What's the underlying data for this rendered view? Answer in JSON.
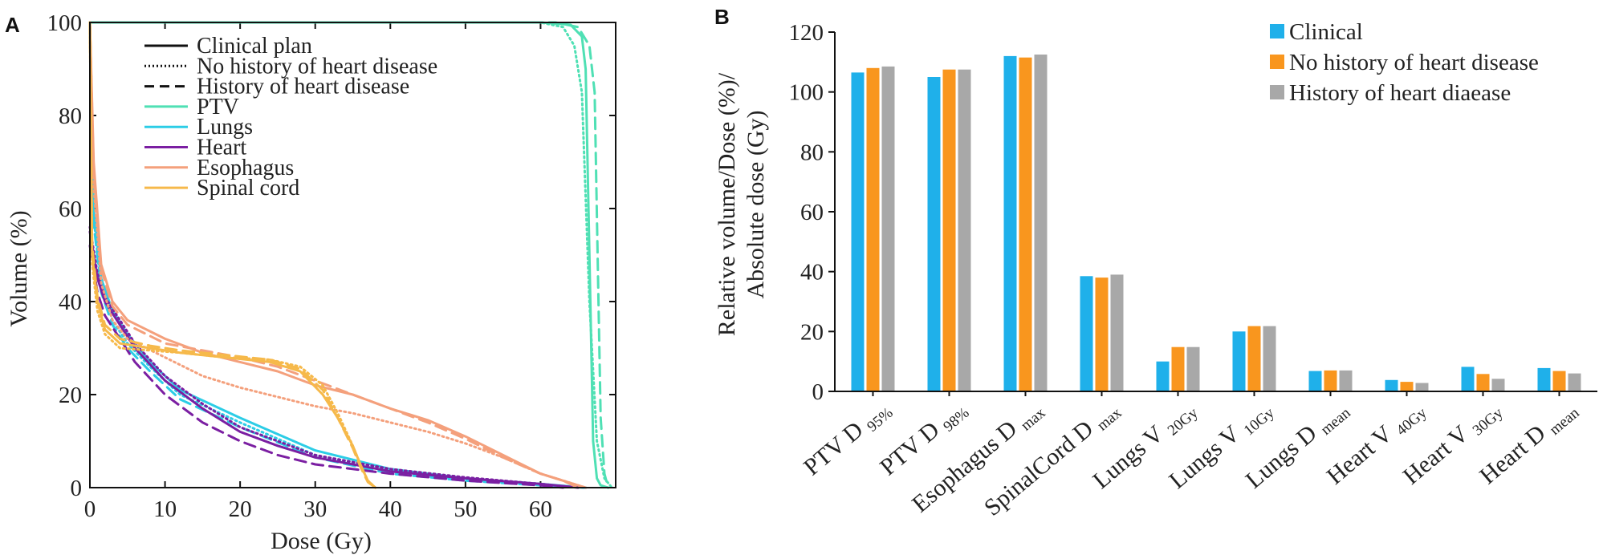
{
  "chart_data": [
    {
      "panel": "A",
      "type": "line",
      "xlabel": "Dose (Gy)",
      "ylabel": "Volume (%)",
      "xlim": [
        0,
        70
      ],
      "ylim": [
        0,
        100
      ],
      "xticks": [
        0,
        10,
        20,
        30,
        40,
        50,
        60
      ],
      "yticks": [
        0,
        20,
        40,
        60,
        80,
        100
      ],
      "legend_position": "top-left",
      "legend": {
        "styles": [
          {
            "name": "Clinical plan",
            "dash": "solid"
          },
          {
            "name": "No history of heart disease",
            "dash": "dotted"
          },
          {
            "name": "History of heart disease",
            "dash": "dashed"
          }
        ],
        "structures": [
          {
            "name": "PTV",
            "color": "#4fe0b4"
          },
          {
            "name": "Lungs",
            "color": "#2ccde6"
          },
          {
            "name": "Heart",
            "color": "#7b1fa2"
          },
          {
            "name": "Esophagus",
            "color": "#f4a07c"
          },
          {
            "name": "Spinal cord",
            "color": "#f6b94a"
          }
        ]
      },
      "series": [
        {
          "structure": "PTV",
          "plan": "Clinical plan",
          "points": [
            [
              0,
              100
            ],
            [
              60,
              100
            ],
            [
              64,
              99.5
            ],
            [
              65.5,
              97
            ],
            [
              66,
              90
            ],
            [
              66.5,
              50
            ],
            [
              67,
              10
            ],
            [
              67.5,
              2
            ],
            [
              68,
              0.5
            ],
            [
              69,
              0
            ]
          ]
        },
        {
          "structure": "PTV",
          "plan": "No history of heart disease",
          "points": [
            [
              0,
              100
            ],
            [
              60,
              100
            ],
            [
              63,
              99
            ],
            [
              64.5,
              95
            ],
            [
              65.5,
              85
            ],
            [
              66.5,
              40
            ],
            [
              67.5,
              10
            ],
            [
              68.5,
              2
            ],
            [
              69.5,
              0
            ]
          ]
        },
        {
          "structure": "PTV",
          "plan": "History of heart disease",
          "points": [
            [
              0,
              100
            ],
            [
              62,
              100
            ],
            [
              65,
              99
            ],
            [
              66.5,
              95
            ],
            [
              67.2,
              85
            ],
            [
              67.6,
              50
            ],
            [
              68,
              15
            ],
            [
              68.5,
              3
            ],
            [
              69,
              0
            ]
          ]
        },
        {
          "structure": "Lungs",
          "plan": "Clinical plan",
          "points": [
            [
              0,
              100
            ],
            [
              0.5,
              60
            ],
            [
              1.5,
              45
            ],
            [
              3,
              38
            ],
            [
              5,
              33
            ],
            [
              8,
              27
            ],
            [
              12,
              21
            ],
            [
              20,
              15
            ],
            [
              30,
              8
            ],
            [
              40,
              4
            ],
            [
              50,
              2
            ],
            [
              60,
              0.8
            ],
            [
              66,
              0
            ]
          ]
        },
        {
          "structure": "Lungs",
          "plan": "No history of heart disease",
          "points": [
            [
              0,
              100
            ],
            [
              0.5,
              58
            ],
            [
              1.5,
              43
            ],
            [
              3,
              36
            ],
            [
              5,
              31
            ],
            [
              8,
              26
            ],
            [
              12,
              20
            ],
            [
              20,
              14
            ],
            [
              30,
              7
            ],
            [
              40,
              3.5
            ],
            [
              50,
              1.8
            ],
            [
              60,
              0.6
            ],
            [
              66,
              0
            ]
          ]
        },
        {
          "structure": "Lungs",
          "plan": "History of heart disease",
          "points": [
            [
              0,
              100
            ],
            [
              0.5,
              57
            ],
            [
              1.5,
              42
            ],
            [
              3,
              35
            ],
            [
              5,
              30
            ],
            [
              8,
              25
            ],
            [
              12,
              19
            ],
            [
              20,
              13
            ],
            [
              30,
              6.5
            ],
            [
              40,
              3
            ],
            [
              50,
              1.5
            ],
            [
              60,
              0.5
            ],
            [
              66,
              0
            ]
          ]
        },
        {
          "structure": "Heart",
          "plan": "Clinical plan",
          "points": [
            [
              0,
              55
            ],
            [
              1,
              45
            ],
            [
              2,
              40
            ],
            [
              4,
              35
            ],
            [
              6,
              30
            ],
            [
              10,
              23
            ],
            [
              15,
              17
            ],
            [
              20,
              12
            ],
            [
              25,
              9
            ],
            [
              30,
              6.5
            ],
            [
              40,
              3.5
            ],
            [
              50,
              2
            ],
            [
              60,
              0.8
            ],
            [
              65,
              0
            ]
          ]
        },
        {
          "structure": "Heart",
          "plan": "No history of heart disease",
          "points": [
            [
              0,
              56
            ],
            [
              1,
              46
            ],
            [
              2,
              41
            ],
            [
              4,
              36
            ],
            [
              6,
              31
            ],
            [
              10,
              24
            ],
            [
              15,
              18
            ],
            [
              20,
              13
            ],
            [
              25,
              10
            ],
            [
              30,
              7
            ],
            [
              40,
              4
            ],
            [
              50,
              2.2
            ],
            [
              60,
              0.8
            ],
            [
              65,
              0
            ]
          ]
        },
        {
          "structure": "Heart",
          "plan": "History of heart disease",
          "points": [
            [
              0,
              52
            ],
            [
              1,
              42
            ],
            [
              2,
              37
            ],
            [
              4,
              32
            ],
            [
              6,
              27
            ],
            [
              10,
              20
            ],
            [
              15,
              14
            ],
            [
              20,
              10
            ],
            [
              25,
              7
            ],
            [
              30,
              5
            ],
            [
              40,
              3
            ],
            [
              50,
              1.5
            ],
            [
              60,
              0.5
            ],
            [
              63,
              0
            ]
          ]
        },
        {
          "structure": "Esophagus",
          "plan": "Clinical plan",
          "points": [
            [
              0,
              100
            ],
            [
              0.5,
              70
            ],
            [
              1.5,
              48
            ],
            [
              3,
              40
            ],
            [
              5,
              36
            ],
            [
              10,
              32
            ],
            [
              15,
              29
            ],
            [
              20,
              27
            ],
            [
              25,
              25
            ],
            [
              30,
              22
            ],
            [
              35,
              20
            ],
            [
              40,
              17
            ],
            [
              45,
              14.5
            ],
            [
              50,
              11
            ],
            [
              55,
              7
            ],
            [
              60,
              3
            ],
            [
              63,
              1.5
            ],
            [
              66,
              0
            ]
          ]
        },
        {
          "structure": "Esophagus",
          "plan": "No history of heart disease",
          "points": [
            [
              0,
              100
            ],
            [
              0.5,
              65
            ],
            [
              1.5,
              44
            ],
            [
              3,
              36
            ],
            [
              5,
              32
            ],
            [
              10,
              28
            ],
            [
              15,
              24
            ],
            [
              20,
              21.5
            ],
            [
              25,
              19.5
            ],
            [
              30,
              17.5
            ],
            [
              35,
              16
            ],
            [
              40,
              14
            ],
            [
              45,
              12
            ],
            [
              50,
              9.5
            ],
            [
              55,
              6.5
            ],
            [
              60,
              3
            ],
            [
              63,
              1.5
            ],
            [
              66,
              0
            ]
          ]
        },
        {
          "structure": "Esophagus",
          "plan": "History of heart disease",
          "points": [
            [
              0,
              100
            ],
            [
              0.5,
              68
            ],
            [
              1.5,
              47
            ],
            [
              3,
              39
            ],
            [
              5,
              35
            ],
            [
              10,
              31
            ],
            [
              15,
              29.5
            ],
            [
              20,
              28
            ],
            [
              25,
              26
            ],
            [
              30,
              23
            ],
            [
              35,
              20
            ],
            [
              40,
              17
            ],
            [
              45,
              14
            ],
            [
              50,
              10.5
            ],
            [
              55,
              6.5
            ],
            [
              60,
              3
            ],
            [
              63,
              1.5
            ],
            [
              65,
              0
            ]
          ]
        },
        {
          "structure": "Spinal cord",
          "plan": "Clinical plan",
          "points": [
            [
              0,
              100
            ],
            [
              0.3,
              50
            ],
            [
              1,
              40
            ],
            [
              2,
              34
            ],
            [
              4,
              31
            ],
            [
              8,
              30
            ],
            [
              12,
              29
            ],
            [
              18,
              28
            ],
            [
              24,
              27
            ],
            [
              28,
              25
            ],
            [
              31,
              20
            ],
            [
              33,
              15
            ],
            [
              35,
              9
            ],
            [
              36,
              5
            ],
            [
              37,
              1.5
            ],
            [
              38,
              0
            ]
          ]
        },
        {
          "structure": "Spinal cord",
          "plan": "No history of heart disease",
          "points": [
            [
              0,
              100
            ],
            [
              0.3,
              48
            ],
            [
              1,
              38
            ],
            [
              2,
              33
            ],
            [
              4,
              30
            ],
            [
              8,
              29.5
            ],
            [
              12,
              29
            ],
            [
              18,
              28
            ],
            [
              24,
              27.5
            ],
            [
              28,
              26
            ],
            [
              31,
              22
            ],
            [
              33,
              16
            ],
            [
              35,
              9
            ],
            [
              36,
              5
            ],
            [
              37,
              1.5
            ],
            [
              38,
              0
            ]
          ]
        },
        {
          "structure": "Spinal cord",
          "plan": "History of heart disease",
          "points": [
            [
              0,
              100
            ],
            [
              0.3,
              52
            ],
            [
              1,
              41
            ],
            [
              2,
              35
            ],
            [
              4,
              32
            ],
            [
              8,
              30.5
            ],
            [
              12,
              29.5
            ],
            [
              18,
              28.5
            ],
            [
              24,
              27.5
            ],
            [
              28,
              25.5
            ],
            [
              31,
              21
            ],
            [
              33,
              15
            ],
            [
              35,
              8.5
            ],
            [
              36,
              4.5
            ],
            [
              37,
              1.2
            ],
            [
              38,
              0
            ]
          ]
        }
      ]
    },
    {
      "panel": "B",
      "type": "bar",
      "ylabel_line1": "Relative volume/Dose (%)/",
      "ylabel_line2": "Absolute dose (Gy)",
      "ylim": [
        0,
        120
      ],
      "yticks": [
        0,
        20,
        40,
        60,
        80,
        100,
        120
      ],
      "legend_position": "top-right",
      "categories": [
        {
          "main": "PTV D",
          "sub": "95%"
        },
        {
          "main": "PTV D",
          "sub": "98%"
        },
        {
          "main": "Esophagus D",
          "sub": "max"
        },
        {
          "main": "SpinalCord D",
          "sub": "max"
        },
        {
          "main": "Lungs V",
          "sub": "20Gy"
        },
        {
          "main": "Lungs V",
          "sub": "10Gy"
        },
        {
          "main": "Lungs D",
          "sub": "mean"
        },
        {
          "main": "Heart V",
          "sub": "40Gy"
        },
        {
          "main": "Heart V",
          "sub": "30Gy"
        },
        {
          "main": "Heart D",
          "sub": "mean"
        }
      ],
      "series": [
        {
          "name": "Clinical",
          "color": "#1fb0ea",
          "values": [
            106.5,
            105,
            112,
            38.5,
            10,
            20,
            6.8,
            3.8,
            8.2,
            7.8
          ]
        },
        {
          "name": "No history of heart disease",
          "color": "#f9961e",
          "values": [
            108,
            107.5,
            111.5,
            38,
            14.8,
            21.8,
            7,
            3.2,
            5.8,
            6.8
          ]
        },
        {
          "name": "History of heart diaease",
          "color": "#a8a8a8",
          "values": [
            108.5,
            107.5,
            112.5,
            39,
            14.8,
            21.8,
            7,
            2.8,
            4.2,
            6
          ]
        }
      ]
    }
  ]
}
